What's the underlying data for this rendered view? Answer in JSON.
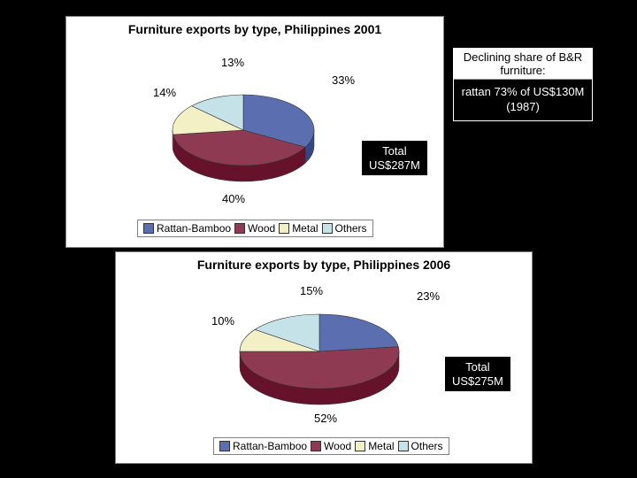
{
  "chart1": {
    "title": "Furniture exports by type, Philippines 2001",
    "title_fontsize": 14,
    "type": "pie",
    "slices": [
      {
        "label": "Rattan-Bamboo",
        "pct": 33,
        "color": "#5b6fb0"
      },
      {
        "label": "Wood",
        "pct": 40,
        "color": "#8e3a52"
      },
      {
        "label": "Metal",
        "pct": 14,
        "color": "#f3f0c5"
      },
      {
        "label": "Others",
        "pct": 13,
        "color": "#c5e2e8"
      }
    ],
    "pct_labels": {
      "rattan": "33%",
      "wood": "40%",
      "metal": "14%",
      "others": "13%"
    },
    "total_line1": "Total",
    "total_line2": "US$287M",
    "legend_items": [
      "Rattan-Bamboo",
      "Wood",
      "Metal",
      "Others"
    ],
    "background": "#ffffff"
  },
  "chart2": {
    "title": "Furniture exports by type, Philippines 2006",
    "title_fontsize": 14,
    "type": "pie",
    "slices": [
      {
        "label": "Rattan-Bamboo",
        "pct": 23,
        "color": "#5b6fb0"
      },
      {
        "label": "Wood",
        "pct": 52,
        "color": "#8e3a52"
      },
      {
        "label": "Metal",
        "pct": 10,
        "color": "#f3f0c5"
      },
      {
        "label": "Others",
        "pct": 15,
        "color": "#c5e2e8"
      }
    ],
    "pct_labels": {
      "rattan": "23%",
      "wood": "52%",
      "metal": "10%",
      "others": "15%"
    },
    "total_line1": "Total",
    "total_line2": "US$275M",
    "legend_items": [
      "Rattan-Bamboo",
      "Wood",
      "Metal",
      "Others"
    ],
    "background": "#ffffff"
  },
  "callout": {
    "heading": "Declining share of B&R furniture:",
    "body": "rattan 73% of US$130M (1987)"
  },
  "palette": {
    "rattan": "#5b6fb0",
    "wood": "#8e3a52",
    "metal": "#f3f0c5",
    "others": "#c5e2e8",
    "slice_border": "#333333",
    "side_dark": "rgba(0,0,0,0.35)"
  }
}
